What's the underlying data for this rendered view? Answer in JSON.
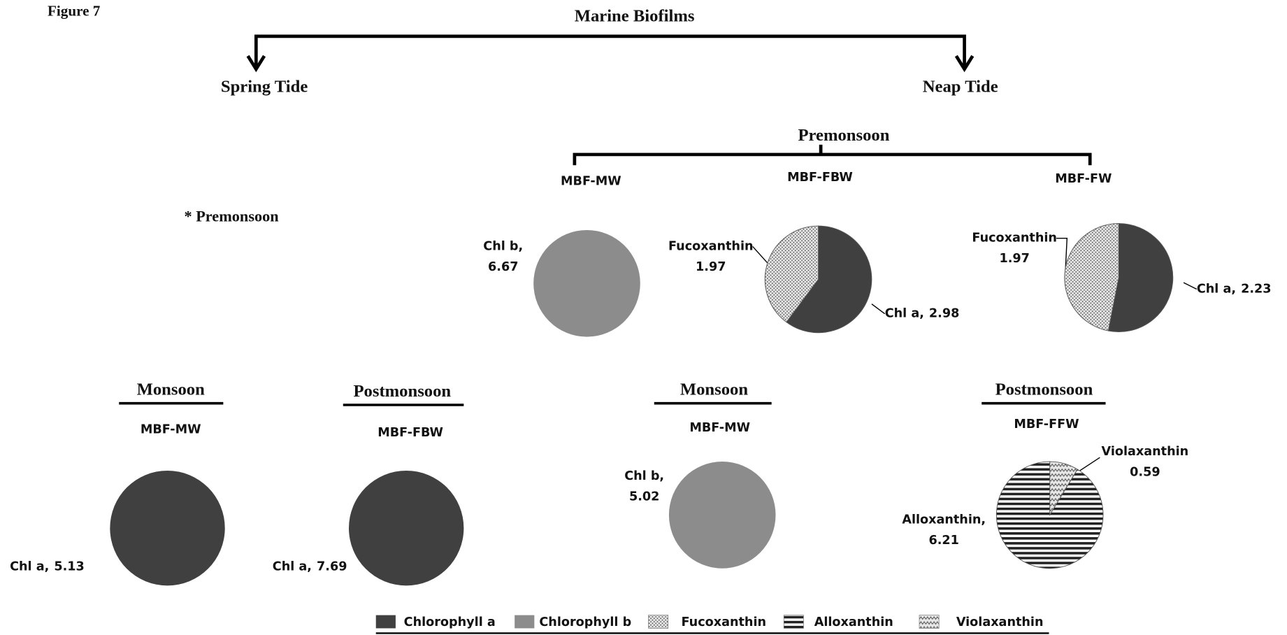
{
  "figure_label": "Figure 7",
  "title": "Marine Biofilms",
  "branches": [
    "Spring Tide",
    "Neap Tide"
  ],
  "spring_note": "* Premonsoon",
  "premonsoon_heading": "Premonsoon",
  "legend": [
    {
      "name": "Chlorophyll a",
      "color": "#404040",
      "pattern": "solid"
    },
    {
      "name": "Chlorophyll b",
      "color": "#8c8c8c",
      "pattern": "solid"
    },
    {
      "name": "Fucoxanthin",
      "color": "#e6e6e6",
      "pattern": "dots"
    },
    {
      "name": "Alloxanthin",
      "color": "#ffffff",
      "pattern": "hlines"
    },
    {
      "name": "Violaxanthin",
      "color": "#e6e6e6",
      "pattern": "zigzag"
    }
  ],
  "chart_data": [
    {
      "type": "pie",
      "title": "MBF-MW",
      "categories": [
        "Chl b,"
      ],
      "values": [
        6.67
      ],
      "colors": [
        "#8c8c8c"
      ],
      "patterns": [
        "solid"
      ]
    },
    {
      "type": "pie",
      "title": "MBF-FBW",
      "categories": [
        "Chl a,",
        "Fucoxanthin"
      ],
      "values": [
        2.98,
        1.97
      ],
      "colors": [
        "#404040",
        "#e6e6e6"
      ],
      "patterns": [
        "solid",
        "dots"
      ]
    },
    {
      "type": "pie",
      "title": "MBF-FW",
      "categories": [
        "Chl a,",
        "Fucoxanthin"
      ],
      "values": [
        2.23,
        1.97
      ],
      "colors": [
        "#404040",
        "#e6e6e6"
      ],
      "patterns": [
        "solid",
        "dots"
      ]
    },
    {
      "type": "pie",
      "season": "Monsoon",
      "title": "MBF-MW",
      "categories": [
        "Chl a,"
      ],
      "values": [
        5.13
      ],
      "colors": [
        "#404040"
      ],
      "patterns": [
        "solid"
      ]
    },
    {
      "type": "pie",
      "season": "Postmonsoon",
      "title": "MBF-FBW",
      "categories": [
        "Chl a,"
      ],
      "values": [
        7.69
      ],
      "colors": [
        "#404040"
      ],
      "patterns": [
        "solid"
      ]
    },
    {
      "type": "pie",
      "season": "Monsoon",
      "title": "MBF-MW",
      "categories": [
        "Chl b,"
      ],
      "values": [
        5.02
      ],
      "colors": [
        "#8c8c8c"
      ],
      "patterns": [
        "solid"
      ]
    },
    {
      "type": "pie",
      "season": "Postmonsoon",
      "title": "MBF-FFW",
      "categories": [
        "Violaxanthin",
        "Alloxanthin,"
      ],
      "values": [
        0.59,
        6.21
      ],
      "colors": [
        "#e6e6e6",
        "#ffffff"
      ],
      "patterns": [
        "zigzag",
        "hlines"
      ]
    }
  ]
}
